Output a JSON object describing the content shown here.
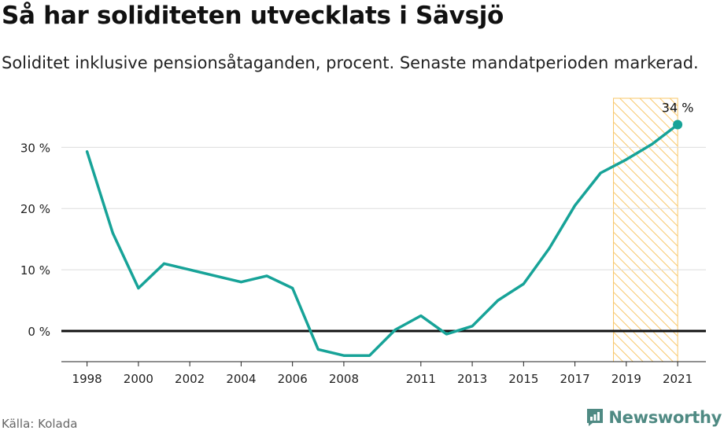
{
  "title": "Så har soliditeten utvecklats i Sävsjö",
  "subtitle": "Soliditet inklusive pensionsåtaganden, procent. Senaste mandatperioden markerad.",
  "source": "Källa: Kolada",
  "brand": {
    "name": "Newsworthy",
    "color": "#4f8a83"
  },
  "colors": {
    "line": "#17a398",
    "highlight": "#f8c76a",
    "zero_line": "#111111",
    "grid": "#dddddd"
  },
  "chart_data": {
    "type": "line",
    "title": "Så har soliditeten utvecklats i Sävsjö",
    "xlabel": "",
    "ylabel": "",
    "x": [
      1998,
      1999,
      2000,
      2001,
      2002,
      2003,
      2004,
      2005,
      2006,
      2007,
      2008,
      2009,
      2010,
      2011,
      2012,
      2013,
      2014,
      2015,
      2016,
      2017,
      2018,
      2019,
      2020,
      2021
    ],
    "series": [
      {
        "values": [
          29.3,
          16.0,
          7.0,
          11.0,
          10.0,
          9.0,
          8.0,
          9.0,
          7.0,
          -3.0,
          -4.0,
          -4.0,
          0.2,
          2.5,
          -0.5,
          0.8,
          5.0,
          7.7,
          13.5,
          20.5,
          25.8,
          28.0,
          30.5,
          33.7
        ]
      }
    ],
    "xticks": [
      1998,
      2000,
      2002,
      2004,
      2006,
      2008,
      2011,
      2013,
      2015,
      2017,
      2019,
      2021
    ],
    "yticks": [
      0,
      10,
      20,
      30
    ],
    "ytick_labels": [
      "0 %",
      "10 %",
      "20 %",
      "30 %"
    ],
    "ylim": [
      -5,
      38
    ],
    "xlim": [
      1997.0,
      2022.1
    ],
    "highlight_range": [
      2018.5,
      2021
    ],
    "end_label": "34 %",
    "grid": true,
    "legend": "none"
  }
}
